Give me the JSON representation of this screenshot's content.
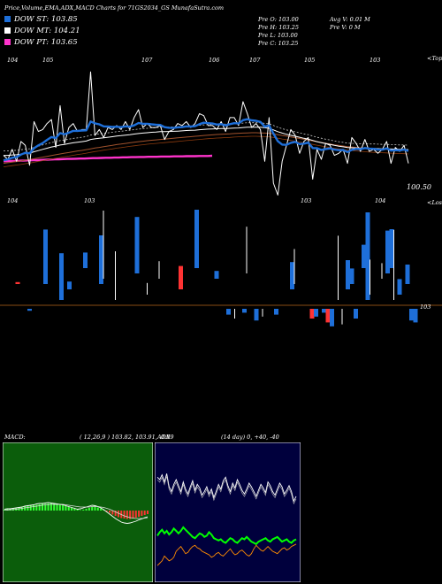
{
  "header": {
    "title": "Price,Volume,EMA,ADX,MACD Charts for 71GS2034_GS MunafaSutra.com",
    "legend": [
      {
        "label": "DOW ST: 103.85",
        "color": "#1e6fd9"
      },
      {
        "label": "DOW MT: 104.21",
        "color": "#ffffff"
      },
      {
        "label": "DOW PT: 103.65",
        "color": "#ff33cc"
      }
    ],
    "ohlc": {
      "open": "Pre  O: 103.00",
      "high": "Pre  H: 103.25",
      "low": "Pre  L: 103.00",
      "close": "Pre  C: 103.25"
    },
    "avg_volume": "Avg V: 0.01 M",
    "pre_volume": "Pre  V: 0  M"
  },
  "chart_data": [
    {
      "type": "line",
      "title": "Price with EMA",
      "top_labels": [
        "104",
        "105",
        "107",
        "106",
        "107",
        "105",
        "103"
      ],
      "bottom_labels": [
        "104",
        "103",
        "103",
        "104"
      ],
      "upper_tag": "<Toppers",
      "lower_tag": "<Losers",
      "last_price": "100.50",
      "series": [
        {
          "role": "price",
          "color": "#ffffff",
          "values": [
            102.6,
            102.4,
            102.9,
            102.3,
            103.3,
            103.1,
            102.1,
            104.3,
            103.8,
            103.9,
            104.2,
            104.4,
            103.0,
            105.1,
            103.2,
            104.0,
            104.2,
            103.8,
            103.9,
            103.9,
            106.8,
            103.6,
            103.9,
            103.5,
            104.0,
            103.9,
            104.1,
            103.9,
            104.3,
            103.9,
            104.5,
            104.9,
            104.0,
            104.2,
            104.0,
            104.0,
            104.1,
            103.4,
            103.8,
            103.9,
            104.2,
            104.1,
            104.3,
            104.0,
            104.2,
            104.7,
            104.6,
            104.1,
            104.1,
            103.9,
            104.3,
            103.8,
            104.5,
            104.5,
            104.1,
            105.3,
            104.7,
            104.0,
            104.2,
            103.9,
            102.3,
            104.5,
            101.2,
            100.6,
            102.3,
            103.1,
            103.9,
            103.6,
            102.7,
            103.3,
            103.5,
            101.4,
            102.9,
            102.4,
            103.2,
            103.1,
            102.6,
            102.7,
            102.9,
            102.2,
            103.5,
            103.2,
            102.8,
            103.4,
            102.8,
            102.9,
            102.7,
            102.9,
            103.3,
            102.2,
            103.0,
            102.8,
            103.1,
            102.2
          ]
        },
        {
          "role": "ema-short",
          "color": "#1e6fd9",
          "values": [
            102.35,
            102.4,
            102.48,
            102.52,
            102.64,
            102.73,
            102.7,
            102.96,
            103.1,
            103.22,
            103.38,
            103.52,
            103.47,
            103.72,
            103.66,
            103.74,
            103.83,
            103.83,
            103.85,
            103.86,
            104.3,
            104.21,
            104.16,
            104.06,
            104.05,
            104.03,
            104.04,
            104.02,
            104.06,
            104.04,
            104.11,
            104.23,
            104.19,
            104.19,
            104.16,
            104.14,
            104.13,
            104.02,
            103.99,
            103.98,
            104.01,
            104.02,
            104.06,
            104.05,
            104.07,
            104.17,
            104.24,
            104.22,
            104.2,
            104.15,
            104.17,
            104.11,
            104.17,
            104.22,
            104.2,
            104.37,
            104.42,
            104.36,
            104.34,
            104.28,
            104.04,
            104.11,
            103.7,
            103.31,
            103.14,
            103.13,
            103.23,
            103.28,
            103.17,
            103.19,
            103.24,
            102.97,
            102.96,
            102.87,
            102.92,
            102.95,
            102.89,
            102.86,
            102.87,
            102.77,
            102.88,
            102.93,
            102.91,
            102.97,
            102.94,
            102.93,
            102.89,
            102.89,
            102.95,
            102.84,
            102.86,
            102.85,
            102.89,
            102.82
          ]
        },
        {
          "role": "ema-medium",
          "color": "#ffffff",
          "values": [
            102.6,
            102.6,
            102.62,
            102.63,
            102.66,
            102.69,
            102.71,
            102.78,
            102.84,
            102.9,
            102.96,
            103.02,
            103.06,
            103.12,
            103.15,
            103.19,
            103.23,
            103.26,
            103.29,
            103.32,
            103.4,
            103.43,
            103.46,
            103.48,
            103.51,
            103.54,
            103.57,
            103.59,
            103.62,
            103.64,
            103.67,
            103.7,
            103.72,
            103.74,
            103.76,
            103.77,
            103.79,
            103.79,
            103.8,
            103.81,
            103.82,
            103.83,
            103.85,
            103.86,
            103.87,
            103.89,
            103.91,
            103.92,
            103.93,
            103.94,
            103.95,
            103.95,
            103.96,
            103.97,
            103.98,
            104.0,
            104.02,
            104.02,
            104.02,
            104.02,
            103.99,
            103.96,
            103.88,
            103.79,
            103.72,
            103.66,
            103.61,
            103.56,
            103.51,
            103.46,
            103.42,
            103.35,
            103.29,
            103.24,
            103.19,
            103.15,
            103.1,
            103.06,
            103.03,
            102.99,
            102.98,
            102.97,
            102.96,
            102.96,
            102.95,
            102.95,
            102.94,
            102.93,
            102.93,
            102.92,
            102.91,
            102.9,
            102.9,
            102.89
          ]
        },
        {
          "role": "ema-long",
          "color": "#a0522d",
          "values": [
            102.2,
            102.23,
            102.26,
            102.29,
            102.32,
            102.36,
            102.39,
            102.43,
            102.47,
            102.51,
            102.55,
            102.59,
            102.63,
            102.67,
            102.71,
            102.74,
            102.78,
            102.82,
            102.85,
            102.89,
            102.93,
            102.97,
            103.0,
            103.04,
            103.07,
            103.1,
            103.14,
            103.17,
            103.2,
            103.23,
            103.26,
            103.29,
            103.31,
            103.34,
            103.36,
            103.38,
            103.4,
            103.42,
            103.44,
            103.46,
            103.48,
            103.5,
            103.52,
            103.54,
            103.56,
            103.58,
            103.6,
            103.62,
            103.63,
            103.65,
            103.66,
            103.67,
            103.68,
            103.7,
            103.71,
            103.72,
            103.73,
            103.74,
            103.74,
            103.73,
            103.72,
            103.71,
            103.68,
            103.64,
            103.6,
            103.57,
            103.53,
            103.49,
            103.45,
            103.41,
            103.37,
            103.33,
            103.29,
            103.25,
            103.21,
            103.17,
            103.13,
            103.1,
            103.07,
            103.04,
            103.02,
            103.0,
            102.98,
            102.96,
            102.94,
            102.93,
            102.92,
            102.91,
            102.9,
            102.89,
            102.88,
            102.87,
            102.86,
            102.85
          ]
        },
        {
          "role": "pt-band",
          "color": "#ff33cc",
          "values": [
            102.3,
            102.31,
            102.32,
            102.32,
            102.33,
            102.34,
            102.35,
            102.36,
            102.36,
            102.37,
            102.38,
            102.39,
            102.4,
            102.4,
            102.41,
            102.42,
            102.42,
            102.43,
            102.44,
            102.44,
            102.45,
            102.46,
            102.46,
            102.47,
            102.48,
            102.48,
            102.49,
            102.49,
            102.5,
            102.5,
            102.51,
            102.51,
            102.52,
            102.52,
            102.53,
            102.53,
            102.53,
            102.54,
            102.54,
            102.54,
            102.55,
            102.55,
            102.55,
            102.56,
            102.56,
            102.56,
            102.57,
            102.57,
            102.57,
            102.58
          ]
        }
      ]
    },
    {
      "type": "bar",
      "title": "Volume",
      "baseline_label": "103",
      "bars": [
        {
          "i": 3,
          "v": 1,
          "c": "#ff3333"
        },
        {
          "i": 6,
          "v": -1,
          "c": "#1e6fd9"
        },
        {
          "i": 10,
          "v": 28,
          "c": "#1e6fd9"
        },
        {
          "i": 14,
          "v": 24,
          "c": "#1e6fd9"
        },
        {
          "i": 16,
          "v": 4,
          "c": "#1e6fd9"
        },
        {
          "i": 20,
          "v": 8,
          "c": "#1e6fd9"
        },
        {
          "i": 24,
          "v": 25,
          "c": "#1e6fd9"
        },
        {
          "i": 25,
          "v": 35,
          "c": "#ffffff"
        },
        {
          "i": 28,
          "v": 25,
          "c": "#ffffff"
        },
        {
          "i": 33,
          "v": 29,
          "c": "#1e6fd9"
        },
        {
          "i": 36,
          "v": 6,
          "c": "#ffffff"
        },
        {
          "i": 39,
          "v": 9,
          "c": "#ffffff"
        },
        {
          "i": 44,
          "v": 12,
          "c": "#ff3333"
        },
        {
          "i": 48,
          "v": 30,
          "c": "#1e6fd9"
        },
        {
          "i": 53,
          "v": 4,
          "c": "#1e6fd9"
        },
        {
          "i": 56,
          "v": -3,
          "c": "#1e6fd9"
        },
        {
          "i": 58,
          "v": -5,
          "c": "#ffffff"
        },
        {
          "i": 60,
          "v": -2,
          "c": "#1e6fd9"
        },
        {
          "i": 61,
          "v": 24,
          "c": "#ffffff"
        },
        {
          "i": 63,
          "v": -6,
          "c": "#1e6fd9"
        },
        {
          "i": 65,
          "v": -4,
          "c": "#ffffff"
        },
        {
          "i": 68,
          "v": -3,
          "c": "#1e6fd9"
        },
        {
          "i": 72,
          "v": 14,
          "c": "#1e6fd9"
        },
        {
          "i": 73,
          "v": 18,
          "c": "#ffffff"
        },
        {
          "i": 77,
          "v": -5,
          "c": "#ff3333"
        },
        {
          "i": 78,
          "v": -4,
          "c": "#1e6fd9"
        },
        {
          "i": 80,
          "v": -2,
          "c": "#1e6fd9"
        },
        {
          "i": 81,
          "v": -7,
          "c": "#ff3333"
        },
        {
          "i": 82,
          "v": -9,
          "c": "#1e6fd9"
        },
        {
          "i": 84,
          "v": 33,
          "c": "#ffffff"
        },
        {
          "i": 85,
          "v": -8,
          "c": "#ffffff"
        },
        {
          "i": 86,
          "v": 15,
          "c": "#1e6fd9"
        },
        {
          "i": 87,
          "v": 8,
          "c": "#1e6fd9"
        },
        {
          "i": 88,
          "v": -5,
          "c": "#1e6fd9"
        },
        {
          "i": 90,
          "v": 12,
          "c": "#1e6fd9"
        },
        {
          "i": 91,
          "v": 45,
          "c": "#1e6fd9"
        },
        {
          "i": 92,
          "v": 18,
          "c": "#ffffff"
        },
        {
          "i": 95,
          "v": 8,
          "c": "#ffffff"
        },
        {
          "i": 96,
          "v": 22,
          "c": "#1e6fd9"
        },
        {
          "i": 97,
          "v": 20,
          "c": "#1e6fd9"
        },
        {
          "i": 98,
          "v": 36,
          "c": "#ffffff"
        },
        {
          "i": 99,
          "v": 8,
          "c": "#1e6fd9"
        },
        {
          "i": 101,
          "v": 10,
          "c": "#1e6fd9"
        },
        {
          "i": 102,
          "v": -6,
          "c": "#1e6fd9"
        },
        {
          "i": 103,
          "v": -7,
          "c": "#1e6fd9"
        }
      ]
    },
    {
      "type": "area",
      "title": "MACD",
      "label": "MACD:",
      "values_text": "( 12,26,9 ) 103.82,  103.91,  -0.09",
      "histogram": [
        0.2,
        0.3,
        0.3,
        0.4,
        0.5,
        0.6,
        0.7,
        0.9,
        1.0,
        1.1,
        1.2,
        1.3,
        1.4,
        1.5,
        1.5,
        1.6,
        1.6,
        1.5,
        1.4,
        1.3,
        1.2,
        1.0,
        0.8,
        0.6,
        0.4,
        0.2,
        0.1,
        0.2,
        0.4,
        0.6,
        0.8,
        0.9,
        0.7,
        0.5,
        0.2,
        -0.2,
        -0.5,
        -0.9,
        -1.2,
        -1.5,
        -1.7,
        -1.8,
        -1.9,
        -1.9,
        -1.8,
        -1.6,
        -1.4,
        -1.2,
        -1.0,
        -0.8
      ],
      "macd_line": [
        0.3,
        0.4,
        0.4,
        0.5,
        0.6,
        0.7,
        0.8,
        1.0,
        1.1,
        1.2,
        1.3,
        1.5,
        1.6,
        1.6,
        1.7,
        1.8,
        1.7,
        1.6,
        1.5,
        1.4,
        1.3,
        1.1,
        0.9,
        0.7,
        0.5,
        0.3,
        0.4,
        0.6,
        0.8,
        1.0,
        1.2,
        1.1,
        0.9,
        0.6,
        0.2,
        -0.3,
        -0.8,
        -1.3,
        -1.8,
        -2.2,
        -2.6,
        -2.8,
        -2.9,
        -2.8,
        -2.6,
        -2.4,
        -2.1,
        -1.9,
        -1.6,
        -1.4
      ],
      "signal_line": [
        0.1,
        0.1,
        0.2,
        0.2,
        0.3,
        0.4,
        0.5,
        0.6,
        0.7,
        0.8,
        0.9,
        1.0,
        1.1,
        1.2,
        1.3,
        1.3,
        1.4,
        1.4,
        1.4,
        1.4,
        1.4,
        1.3,
        1.2,
        1.1,
        1.0,
        0.9,
        0.8,
        0.8,
        0.8,
        0.8,
        0.9,
        0.9,
        0.9,
        0.8,
        0.7,
        0.5,
        0.3,
        0.0,
        -0.3,
        -0.6,
        -0.9,
        -1.2,
        -1.4,
        -1.6,
        -1.7,
        -1.8,
        -1.8,
        -1.8,
        -1.7,
        -1.6
      ]
    },
    {
      "type": "line",
      "title": "ADX",
      "label": "ADX",
      "values_text": "(14 day) 0,  +40,  -40",
      "series": [
        {
          "role": "adx",
          "color": "#ffffff",
          "values": [
            82,
            80,
            84,
            78,
            85,
            74,
            70,
            76,
            80,
            75,
            70,
            78,
            72,
            68,
            74,
            79,
            71,
            76,
            73,
            67,
            70,
            74,
            68,
            72,
            65,
            70,
            76,
            72,
            79,
            82,
            75,
            70,
            77,
            73,
            80,
            76,
            71,
            68,
            72,
            77,
            74,
            70,
            66,
            71,
            76,
            73,
            69,
            78,
            75,
            70,
            67,
            72,
            77,
            74,
            68,
            71,
            75,
            70,
            62,
            66
          ]
        },
        {
          "role": "plus-di",
          "color": "#00ff00",
          "values": [
            33,
            36,
            38,
            35,
            37,
            34,
            36,
            39,
            37,
            35,
            37,
            40,
            38,
            36,
            34,
            32,
            31,
            33,
            35,
            34,
            32,
            33,
            36,
            34,
            31,
            30,
            29,
            30,
            28,
            27,
            29,
            31,
            30,
            28,
            27,
            29,
            31,
            30,
            32,
            30,
            28,
            27,
            26,
            28,
            29,
            30,
            31,
            29,
            28,
            30,
            31,
            32,
            30,
            28,
            29,
            30,
            28,
            27,
            29,
            30
          ]
        },
        {
          "role": "minus-di",
          "color": "#ff8c00",
          "values": [
            8,
            10,
            12,
            16,
            14,
            12,
            13,
            15,
            20,
            22,
            24,
            21,
            18,
            19,
            22,
            24,
            25,
            23,
            22,
            20,
            19,
            18,
            17,
            15,
            16,
            18,
            19,
            17,
            16,
            18,
            20,
            22,
            19,
            17,
            18,
            20,
            21,
            19,
            17,
            16,
            18,
            22,
            25,
            23,
            21,
            20,
            22,
            24,
            22,
            20,
            19,
            18,
            20,
            22,
            23,
            21,
            22,
            24,
            25,
            26
          ]
        }
      ]
    }
  ]
}
